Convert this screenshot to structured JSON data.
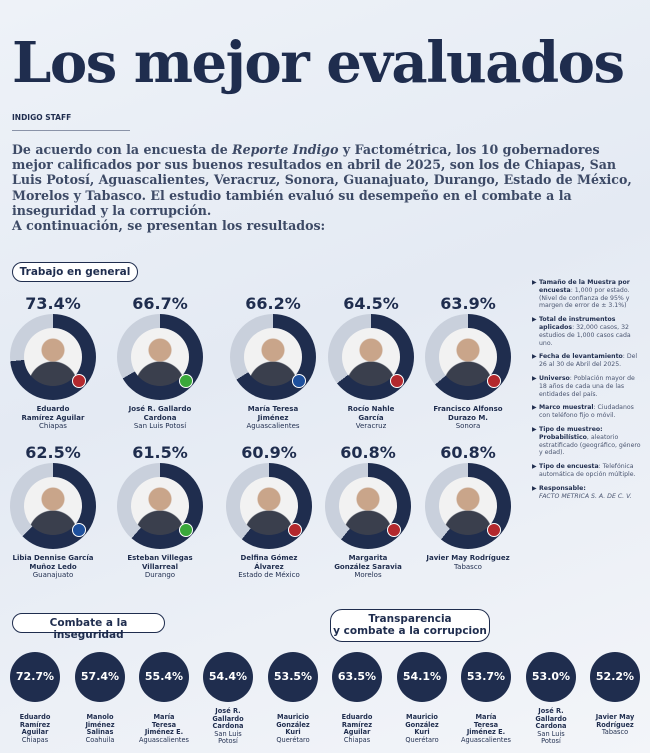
{
  "title": "Los mejor evaluados",
  "byline": "INDIGO STAFF",
  "intro": {
    "p1": "De acuerdo con la encuesta de ",
    "p2": "Reporte Indigo",
    "p3": " y Factométrica, los 10 gobernadores mejor calificados por sus buenos resultados en abril de 2025, son los de Chiapas, San Luis Potosí, Aguascalientes, Veracruz, Sonora, Guanajuato, Durango, Estado de México, Morelos y Tabasco. El estudio también evaluó su desempeño en el combate a la inseguridad y la corrupción.",
    "p4": "A continuación, se presentan los resultados:"
  },
  "section_general": "Trabajo en general",
  "section_inseguridad": "Combate a la inseguridad",
  "section_transparencia_1": "Transparencia",
  "section_transparencia_2": "y combate a la corrupcion",
  "governors": [
    {
      "pct": "73.4%",
      "value": 73.4,
      "name1": "Eduardo",
      "name2": "Ramírez Aguilar",
      "state": "Chiapas",
      "party_color": "#b3282d"
    },
    {
      "pct": "66.7%",
      "value": 66.7,
      "name1": "José R. Gallardo",
      "name2": "Cardona",
      "state": "San Luis Potosí",
      "party_color": "#3aa83a"
    },
    {
      "pct": "66.2%",
      "value": 66.2,
      "name1": "María Teresa",
      "name2": "Jiménez",
      "state": "Aguascalientes",
      "party_color": "#1d4f9c"
    },
    {
      "pct": "64.5%",
      "value": 64.5,
      "name1": "Rocío Nahle",
      "name2": "García",
      "state": "Veracruz",
      "party_color": "#b3282d"
    },
    {
      "pct": "63.9%",
      "value": 63.9,
      "name1": "Francisco Alfonso",
      "name2": "Durazo M.",
      "state": "Sonora",
      "party_color": "#b3282d"
    },
    {
      "pct": "62.5%",
      "value": 62.5,
      "name1": "Libia Dennise García",
      "name2": "Muñoz Ledo",
      "state": "Guanajuato",
      "party_color": "#1d4f9c"
    },
    {
      "pct": "61.5%",
      "value": 61.5,
      "name1": "Esteban Villegas",
      "name2": "Villarreal",
      "state": "Durango",
      "party_color": "#3aa83a"
    },
    {
      "pct": "60.9%",
      "value": 60.9,
      "name1": "Delfina Gómez",
      "name2": "Álvarez",
      "state": "Estado de México",
      "party_color": "#b3282d"
    },
    {
      "pct": "60.8%",
      "value": 60.8,
      "name1": "Margarita",
      "name2": "González Saravia",
      "state": "Morelos",
      "party_color": "#b3282d"
    },
    {
      "pct": "60.8%",
      "value": 60.8,
      "name1": "Javier May Rodríguez",
      "name2": "",
      "state": "Tabasco",
      "party_color": "#b3282d"
    }
  ],
  "facts": [
    {
      "label": "Tamaño de la Muestra por encuesta",
      "text": ": 1,000 por estado. (Nivel de confianza de 95% y margen de error de ± 3.1%)"
    },
    {
      "label": "Total de instrumentos aplicados",
      "text": ": 32,000 casos, 32 estudios de 1,000 casos cada uno."
    },
    {
      "label": "Fecha de levantamiento",
      "text": ": Del 26 al 30 de Abril del 2025."
    },
    {
      "label": "Universo",
      "text": ": Población mayor de 18 años de cada una de las entidades del país."
    },
    {
      "label": "Marco muestral",
      "text": ": Ciudadanos con teléfono fijo o móvil."
    },
    {
      "label": "Tipo de muestreo: Probabilístico",
      "text": ", aleatorio estratificado (geográfico, género y edad)."
    },
    {
      "label": "Tipo de encuesta",
      "text": ": Telefónica automática de opción múltiple."
    },
    {
      "label": "Responsable:",
      "text": "FACTO METRICA S. A. DE C. V."
    }
  ],
  "inseguridad": [
    {
      "pct": "72.7%",
      "n1": "Eduardo",
      "n2": "Ramírez",
      "n3": "Aguilar",
      "n4": "",
      "state": "Chiapas"
    },
    {
      "pct": "57.4%",
      "n1": "Manolo",
      "n2": "Jiménez",
      "n3": "Salinas",
      "n4": "",
      "state": "Coahuila"
    },
    {
      "pct": "55.4%",
      "n1": "María",
      "n2": "Teresa",
      "n3": "Jiménez E.",
      "n4": "",
      "state": "Aguascalientes"
    },
    {
      "pct": "54.4%",
      "n1": "José R.",
      "n2": "Gallardo",
      "n3": "Cardona",
      "n4": "San Luis",
      "state": "Potosí"
    },
    {
      "pct": "53.5%",
      "n1": "Mauricio",
      "n2": "González",
      "n3": "Kuri",
      "n4": "",
      "state": "Querétaro"
    }
  ],
  "transparencia": [
    {
      "pct": "63.5%",
      "n1": "Eduardo",
      "n2": "Ramírez",
      "n3": "Aguilar",
      "n4": "",
      "state": "Chiapas"
    },
    {
      "pct": "54.1%",
      "n1": "Mauricio",
      "n2": "González",
      "n3": "Kuri",
      "n4": "",
      "state": "Querétaro"
    },
    {
      "pct": "53.7%",
      "n1": "María",
      "n2": "Teresa",
      "n3": "Jiménez E.",
      "n4": "",
      "state": "Aguascalientes"
    },
    {
      "pct": "53.0%",
      "n1": "José R.",
      "n2": "Gallardo",
      "n3": "Cardona",
      "n4": "San Luis",
      "state": "Potosí"
    },
    {
      "pct": "52.2%",
      "n1": "Javier May",
      "n2": "Rodríguez",
      "n3": "",
      "n4": "",
      "state": "Tabasco"
    }
  ]
}
